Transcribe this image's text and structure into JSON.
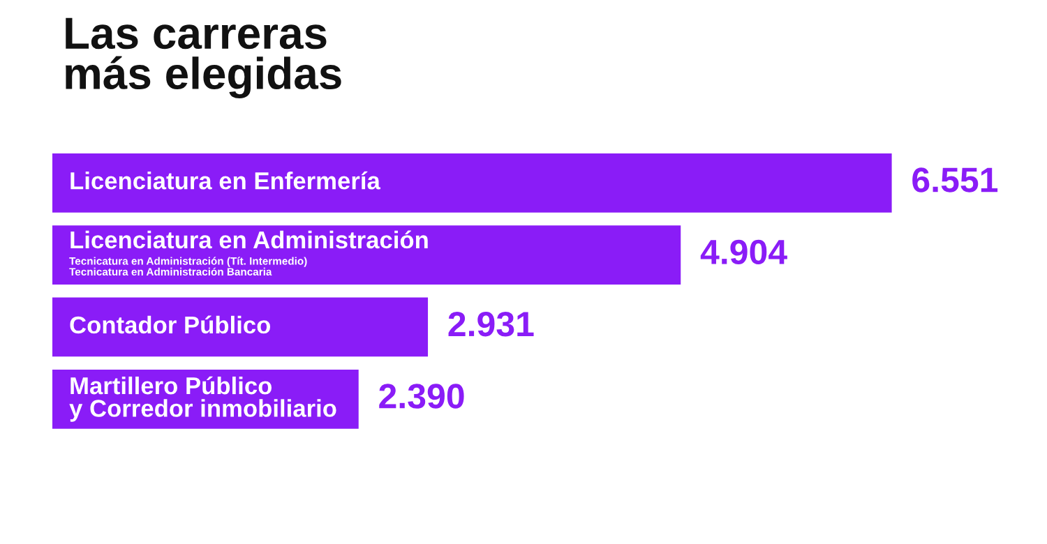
{
  "chart_data": {
    "type": "bar",
    "orientation": "horizontal",
    "title": "Las carreras\nmás elegidas",
    "categories": [
      "Licenciatura en Enfermería",
      "Licenciatura en Administración\nTecnicatura en Administración (Tít. Intermedio)\nTecnicatura en Administración Bancaria",
      "Contador Público",
      "Martillero Público\ny Corredor inmobiliario"
    ],
    "values": [
      6551,
      4904,
      2931,
      2390
    ],
    "value_labels": [
      "6.551",
      "4.904",
      "2.931",
      "2.390"
    ],
    "color": "#8a1cf7"
  }
}
